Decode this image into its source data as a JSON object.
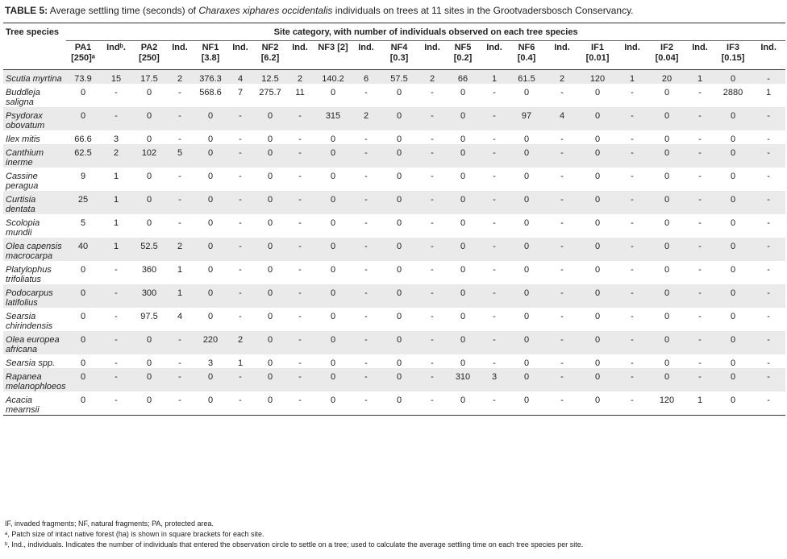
{
  "caption": {
    "label": "TABLE 5:",
    "text_before": " Average settling time (seconds) of ",
    "species_italic": "Charaxes xiphares occidentalis",
    "text_after": " individuals on trees at 11 sites in the Grootvadersbosch Conservancy."
  },
  "table": {
    "species_header": "Tree species",
    "site_header": "Site category, with number of individuals observed on each tree species",
    "columns": [
      {
        "l1": "PA1",
        "l2": "[250]ᵃ"
      },
      {
        "l1": "Indᵇ.",
        "l2": ""
      },
      {
        "l1": "PA2",
        "l2": "[250]"
      },
      {
        "l1": "Ind.",
        "l2": ""
      },
      {
        "l1": "NF1",
        "l2": "[3.8]"
      },
      {
        "l1": "Ind.",
        "l2": ""
      },
      {
        "l1": "NF2",
        "l2": "[6.2]"
      },
      {
        "l1": "Ind.",
        "l2": ""
      },
      {
        "l1": "NF3 [2]",
        "l2": ""
      },
      {
        "l1": "Ind.",
        "l2": ""
      },
      {
        "l1": "NF4",
        "l2": "[0.3]"
      },
      {
        "l1": "Ind.",
        "l2": ""
      },
      {
        "l1": "NF5",
        "l2": "[0.2]"
      },
      {
        "l1": "Ind.",
        "l2": ""
      },
      {
        "l1": "NF6",
        "l2": "[0.4]"
      },
      {
        "l1": "Ind.",
        "l2": ""
      },
      {
        "l1": "IF1",
        "l2": "[0.01]"
      },
      {
        "l1": "Ind.",
        "l2": ""
      },
      {
        "l1": "IF2",
        "l2": "[0.04]"
      },
      {
        "l1": "Ind.",
        "l2": ""
      },
      {
        "l1": "IF3",
        "l2": "[0.15]"
      },
      {
        "l1": "Ind.",
        "l2": ""
      }
    ],
    "rows": [
      {
        "species": "Scutia myrtina",
        "shade": true,
        "values": [
          "73.9",
          "15",
          "17.5",
          "2",
          "376.3",
          "4",
          "12.5",
          "2",
          "140.2",
          "6",
          "57.5",
          "2",
          "66",
          "1",
          "61.5",
          "2",
          "120",
          "1",
          "20",
          "1",
          "0",
          "-"
        ]
      },
      {
        "species": "Buddleja saligna",
        "shade": false,
        "values": [
          "0",
          "-",
          "0",
          "-",
          "568.6",
          "7",
          "275.7",
          "11",
          "0",
          "-",
          "0",
          "-",
          "0",
          "-",
          "0",
          "-",
          "0",
          "-",
          "0",
          "-",
          "2880",
          "1"
        ]
      },
      {
        "species": "Psydorax obovatum",
        "shade": true,
        "values": [
          "0",
          "-",
          "0",
          "-",
          "0",
          "-",
          "0",
          "-",
          "315",
          "2",
          "0",
          "-",
          "0",
          "-",
          "97",
          "4",
          "0",
          "-",
          "0",
          "-",
          "0",
          "-"
        ]
      },
      {
        "species": "Ilex mitis",
        "shade": false,
        "values": [
          "66.6",
          "3",
          "0",
          "-",
          "0",
          "-",
          "0",
          "-",
          "0",
          "-",
          "0",
          "-",
          "0",
          "-",
          "0",
          "-",
          "0",
          "-",
          "0",
          "-",
          "0",
          "-"
        ]
      },
      {
        "species": "Canthium inerme",
        "shade": true,
        "values": [
          "62.5",
          "2",
          "102",
          "5",
          "0",
          "-",
          "0",
          "-",
          "0",
          "-",
          "0",
          "-",
          "0",
          "-",
          "0",
          "-",
          "0",
          "-",
          "0",
          "-",
          "0",
          "-"
        ]
      },
      {
        "species": "Cassine peragua",
        "shade": false,
        "values": [
          "9",
          "1",
          "0",
          "-",
          "0",
          "-",
          "0",
          "-",
          "0",
          "-",
          "0",
          "-",
          "0",
          "-",
          "0",
          "-",
          "0",
          "-",
          "0",
          "-",
          "0",
          "-"
        ]
      },
      {
        "species": "Curtisia dentata",
        "shade": true,
        "values": [
          "25",
          "1",
          "0",
          "-",
          "0",
          "-",
          "0",
          "-",
          "0",
          "-",
          "0",
          "-",
          "0",
          "-",
          "0",
          "-",
          "0",
          "-",
          "0",
          "-",
          "0",
          "-"
        ]
      },
      {
        "species": "Scolopia mundii",
        "shade": false,
        "values": [
          "5",
          "1",
          "0",
          "-",
          "0",
          "-",
          "0",
          "-",
          "0",
          "-",
          "0",
          "-",
          "0",
          "-",
          "0",
          "-",
          "0",
          "-",
          "0",
          "-",
          "0",
          "-"
        ]
      },
      {
        "species": "Olea capensis macrocarpa",
        "shade": true,
        "values": [
          "40",
          "1",
          "52.5",
          "2",
          "0",
          "-",
          "0",
          "-",
          "0",
          "-",
          "0",
          "-",
          "0",
          "-",
          "0",
          "-",
          "0",
          "-",
          "0",
          "-",
          "0",
          "-"
        ]
      },
      {
        "species": "Platylophus trifoliatus",
        "shade": false,
        "values": [
          "0",
          "-",
          "360",
          "1",
          "0",
          "-",
          "0",
          "-",
          "0",
          "-",
          "0",
          "-",
          "0",
          "-",
          "0",
          "-",
          "0",
          "-",
          "0",
          "-",
          "0",
          "-"
        ]
      },
      {
        "species": "Podocarpus latifolius",
        "shade": true,
        "values": [
          "0",
          "-",
          "300",
          "1",
          "0",
          "-",
          "0",
          "-",
          "0",
          "-",
          "0",
          "-",
          "0",
          "-",
          "0",
          "-",
          "0",
          "-",
          "0",
          "-",
          "0",
          "-"
        ]
      },
      {
        "species": "Searsia chirindensis",
        "shade": false,
        "values": [
          "0",
          "-",
          "97.5",
          "4",
          "0",
          "-",
          "0",
          "-",
          "0",
          "-",
          "0",
          "-",
          "0",
          "-",
          "0",
          "-",
          "0",
          "-",
          "0",
          "-",
          "0",
          "-"
        ]
      },
      {
        "species": "Olea europea africana",
        "shade": true,
        "values": [
          "0",
          "-",
          "0",
          "-",
          "220",
          "2",
          "0",
          "-",
          "0",
          "-",
          "0",
          "-",
          "0",
          "-",
          "0",
          "-",
          "0",
          "-",
          "0",
          "-",
          "0",
          "-"
        ]
      },
      {
        "species": "Searsia spp.",
        "shade": false,
        "values": [
          "0",
          "-",
          "0",
          "-",
          "3",
          "1",
          "0",
          "-",
          "0",
          "-",
          "0",
          "-",
          "0",
          "-",
          "0",
          "-",
          "0",
          "-",
          "0",
          "-",
          "0",
          "-"
        ]
      },
      {
        "species": "Rapanea melanophloeos",
        "shade": true,
        "values": [
          "0",
          "-",
          "0",
          "-",
          "0",
          "-",
          "0",
          "-",
          "0",
          "-",
          "0",
          "-",
          "310",
          "3",
          "0",
          "-",
          "0",
          "-",
          "0",
          "-",
          "0",
          "-"
        ]
      },
      {
        "species": "Acacia mearnsii",
        "shade": false,
        "values": [
          "0",
          "-",
          "0",
          "-",
          "0",
          "-",
          "0",
          "-",
          "0",
          "-",
          "0",
          "-",
          "0",
          "-",
          "0",
          "-",
          "0",
          "-",
          "120",
          "1",
          "0",
          "-"
        ]
      }
    ]
  },
  "footnotes": [
    "IF, invaded fragments; NF, natural fragments; PA, protected area.",
    "ᵃ, Patch size of intact native forest (ha) is shown in square brackets for each site.",
    "ᵇ, Ind., individuals. Indicates the number of individuals that entered the observation circle to settle on a tree; used to calculate the average settling time on each tree species per site."
  ]
}
